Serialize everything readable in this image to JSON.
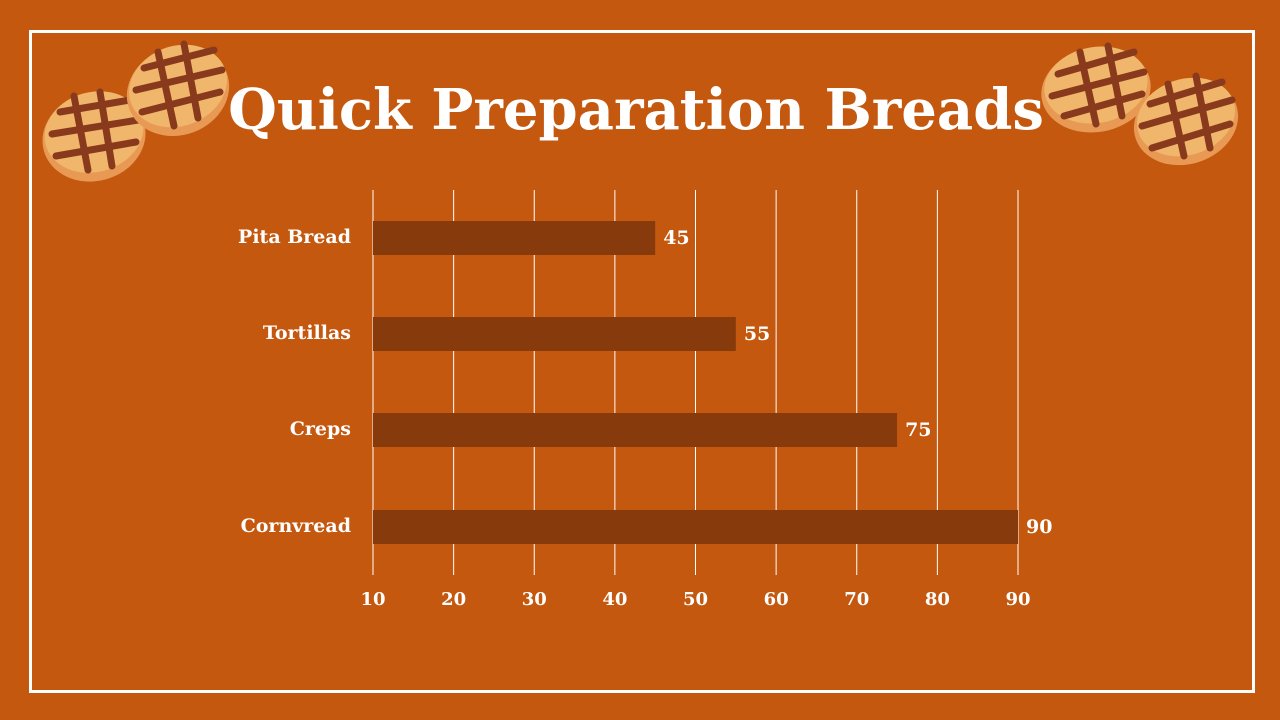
{
  "slide": {
    "title": "Quick Preparation Breads",
    "background_color": "#c4580f",
    "frame_color": "#ffffff",
    "decorations": [
      "bread-roll-icon",
      "bread-roll-icon",
      "bread-roll-icon",
      "bread-roll-icon"
    ]
  },
  "chart_data": {
    "type": "bar",
    "orientation": "horizontal",
    "title": "Quick Preparation Breads",
    "categories": [
      "Pita Bread",
      "Tortillas",
      "Creps",
      "Cornvread"
    ],
    "values": [
      45,
      55,
      75,
      90
    ],
    "data_labels": [
      "45",
      "55",
      "75",
      "90"
    ],
    "xlim": [
      10,
      90
    ],
    "xticks": [
      10,
      20,
      30,
      40,
      50,
      60,
      70,
      80,
      90
    ],
    "xlabel": "",
    "ylabel": "",
    "grid": "vertical",
    "legend": "none",
    "bar_color": "#873a0c",
    "grid_color": "#ffffff",
    "text_color": "#ffffff"
  }
}
